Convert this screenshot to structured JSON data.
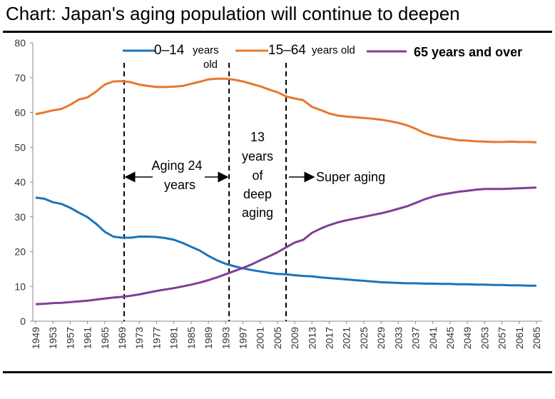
{
  "title": "Chart: Japan's aging population will continue to deepen",
  "chart_data": {
    "type": "line",
    "title": "Chart: Japan's aging population will continue to deepen",
    "xlabel": "",
    "ylabel": "",
    "ylim": [
      0,
      80
    ],
    "yticks": [
      0,
      10,
      20,
      30,
      40,
      50,
      60,
      70,
      80
    ],
    "xlim": [
      1949,
      2065
    ],
    "xticks": [
      "1949",
      "1953",
      "1957",
      "1961",
      "1965",
      "1969",
      "1973",
      "1977",
      "1981",
      "1985",
      "1989",
      "1993",
      "1997",
      "2001",
      "2005",
      "2009",
      "2013",
      "2017",
      "2021",
      "2025",
      "2029",
      "2033",
      "2037",
      "2041",
      "2045",
      "2049",
      "2053",
      "2057",
      "2061",
      "2065"
    ],
    "series": [
      {
        "name": "0–14 years old",
        "legend_main": "0–14",
        "legend_sub": "years",
        "legend_sub2": "old",
        "color": "#1a75bc",
        "x": [
          1949,
          1951,
          1953,
          1955,
          1957,
          1959,
          1961,
          1963,
          1965,
          1967,
          1969,
          1971,
          1973,
          1975,
          1977,
          1979,
          1981,
          1983,
          1985,
          1987,
          1989,
          1991,
          1993,
          1995,
          1997,
          1999,
          2001,
          2003,
          2005,
          2007,
          2009,
          2011,
          2013,
          2015,
          2017,
          2019,
          2021,
          2023,
          2025,
          2027,
          2029,
          2031,
          2033,
          2035,
          2037,
          2039,
          2041,
          2043,
          2045,
          2047,
          2049,
          2051,
          2053,
          2055,
          2057,
          2059,
          2061,
          2063,
          2065
        ],
        "values": [
          35.5,
          35.2,
          34.2,
          33.7,
          32.6,
          31.2,
          29.9,
          28.0,
          25.7,
          24.3,
          24.0,
          24.0,
          24.3,
          24.3,
          24.2,
          23.9,
          23.4,
          22.5,
          21.4,
          20.3,
          18.8,
          17.5,
          16.5,
          15.8,
          15.2,
          14.7,
          14.3,
          13.9,
          13.6,
          13.5,
          13.2,
          13.0,
          12.9,
          12.6,
          12.4,
          12.2,
          12.0,
          11.8,
          11.6,
          11.4,
          11.2,
          11.1,
          11.0,
          10.9,
          10.9,
          10.8,
          10.8,
          10.7,
          10.7,
          10.6,
          10.6,
          10.5,
          10.5,
          10.4,
          10.4,
          10.3,
          10.3,
          10.2,
          10.2
        ]
      },
      {
        "name": "15–64 years old",
        "legend_main": "15–64",
        "legend_sub": "years old",
        "color": "#e8772e",
        "x": [
          1949,
          1951,
          1953,
          1955,
          1957,
          1959,
          1961,
          1963,
          1965,
          1967,
          1969,
          1971,
          1973,
          1975,
          1977,
          1979,
          1981,
          1983,
          1985,
          1987,
          1989,
          1991,
          1993,
          1995,
          1997,
          1999,
          2001,
          2003,
          2005,
          2007,
          2009,
          2011,
          2013,
          2015,
          2017,
          2019,
          2021,
          2023,
          2025,
          2027,
          2029,
          2031,
          2033,
          2035,
          2037,
          2039,
          2041,
          2043,
          2045,
          2047,
          2049,
          2051,
          2053,
          2055,
          2057,
          2059,
          2061,
          2063,
          2065
        ],
        "values": [
          59.5,
          60.0,
          60.6,
          61.0,
          62.2,
          63.7,
          64.3,
          66.0,
          68.0,
          68.9,
          69.0,
          68.7,
          68.0,
          67.6,
          67.3,
          67.3,
          67.4,
          67.6,
          68.2,
          68.8,
          69.5,
          69.7,
          69.7,
          69.4,
          68.9,
          68.2,
          67.5,
          66.6,
          65.8,
          64.6,
          64.0,
          63.5,
          61.6,
          60.7,
          59.7,
          59.1,
          58.8,
          58.6,
          58.4,
          58.2,
          57.9,
          57.5,
          57.0,
          56.3,
          55.3,
          54.1,
          53.3,
          52.8,
          52.4,
          52.0,
          51.9,
          51.7,
          51.6,
          51.5,
          51.5,
          51.6,
          51.5,
          51.5,
          51.4
        ]
      },
      {
        "name": "65 years and over",
        "legend_main": "65 years and over",
        "color": "#7f3f98",
        "x": [
          1949,
          1951,
          1953,
          1955,
          1957,
          1959,
          1961,
          1963,
          1965,
          1967,
          1969,
          1971,
          1973,
          1975,
          1977,
          1979,
          1981,
          1983,
          1985,
          1987,
          1989,
          1991,
          1993,
          1995,
          1997,
          1999,
          2001,
          2003,
          2005,
          2007,
          2009,
          2011,
          2013,
          2015,
          2017,
          2019,
          2021,
          2023,
          2025,
          2027,
          2029,
          2031,
          2033,
          2035,
          2037,
          2039,
          2041,
          2043,
          2045,
          2047,
          2049,
          2051,
          2053,
          2055,
          2057,
          2059,
          2061,
          2063,
          2065
        ],
        "values": [
          4.9,
          5.0,
          5.2,
          5.3,
          5.5,
          5.7,
          5.9,
          6.2,
          6.5,
          6.8,
          7.0,
          7.3,
          7.7,
          8.2,
          8.7,
          9.1,
          9.5,
          10.0,
          10.5,
          11.1,
          11.8,
          12.6,
          13.5,
          14.4,
          15.3,
          16.3,
          17.5,
          18.6,
          19.8,
          21.2,
          22.6,
          23.4,
          25.4,
          26.6,
          27.6,
          28.4,
          29.0,
          29.5,
          30.0,
          30.5,
          31.0,
          31.6,
          32.3,
          33.0,
          34.0,
          35.0,
          35.8,
          36.4,
          36.8,
          37.2,
          37.5,
          37.8,
          38.0,
          38.0,
          38.0,
          38.1,
          38.2,
          38.3,
          38.4
        ]
      }
    ],
    "vertical_markers": [
      1969.5,
      1993.8,
      2007.0
    ],
    "annotations": {
      "aging": [
        "Aging 24",
        "years"
      ],
      "deep": [
        "13",
        "years",
        "of",
        "deep",
        "aging"
      ],
      "super": "Super aging"
    }
  }
}
